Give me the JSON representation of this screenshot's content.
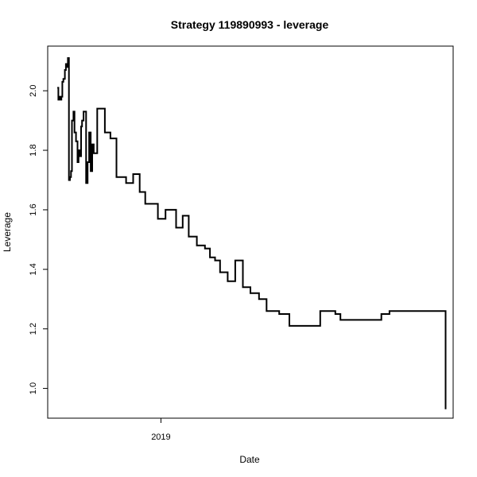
{
  "chart_data": {
    "type": "line",
    "title": "Strategy 119890993 - leverage",
    "xlabel": "Date",
    "ylabel": "Leverage",
    "x_ticks": [
      "2019"
    ],
    "y_ticks": [
      "1.0",
      "1.2",
      "1.4",
      "1.6",
      "1.8",
      "2.0"
    ],
    "ylim": [
      0.9,
      2.15
    ],
    "grid": false,
    "legend": "none",
    "line_color": "#000000",
    "series": [
      {
        "step": "horizontal-then-vertical",
        "x": [
          "2018-06-10",
          "2018-06-12",
          "2018-06-14",
          "2018-06-16",
          "2018-06-18",
          "2018-06-20",
          "2018-06-22",
          "2018-06-25",
          "2018-06-27",
          "2018-06-29",
          "2018-07-01",
          "2018-07-03",
          "2018-07-05",
          "2018-07-07",
          "2018-07-09",
          "2018-07-12",
          "2018-07-14",
          "2018-07-17",
          "2018-07-20",
          "2018-07-22",
          "2018-07-25",
          "2018-07-27",
          "2018-07-29",
          "2018-08-01",
          "2018-08-03",
          "2018-08-06",
          "2018-08-09",
          "2018-08-12",
          "2018-08-15",
          "2018-08-18",
          "2018-08-21",
          "2018-08-28",
          "2018-09-12",
          "2018-09-23",
          "2018-10-05",
          "2018-10-24",
          "2018-11-07",
          "2018-11-20",
          "2018-12-01",
          "2018-12-26",
          "2019-01-10",
          "2019-01-31",
          "2019-02-13",
          "2019-02-25",
          "2019-03-13",
          "2019-03-29",
          "2019-04-08",
          "2019-04-18",
          "2019-04-28",
          "2019-05-13",
          "2019-05-28",
          "2019-06-12",
          "2019-06-27",
          "2019-07-14",
          "2019-07-29",
          "2019-08-23",
          "2019-09-12",
          "2019-11-12",
          "2019-12-12",
          "2019-12-22",
          "2020-03-12",
          "2020-03-28",
          "2020-04-15",
          "2020-05-14",
          "2020-05-30",
          "2020-06-16",
          "2020-07-15",
          "2020-07-17"
        ],
        "y": [
          2.01,
          1.97,
          1.98,
          1.97,
          1.98,
          2.03,
          2.04,
          2.07,
          2.09,
          2.08,
          2.11,
          1.7,
          1.71,
          1.73,
          1.9,
          1.93,
          1.86,
          1.83,
          1.76,
          1.8,
          1.78,
          1.88,
          1.9,
          1.93,
          1.93,
          1.69,
          1.76,
          1.86,
          1.73,
          1.82,
          1.79,
          1.94,
          1.86,
          1.84,
          1.71,
          1.69,
          1.72,
          1.66,
          1.62,
          1.57,
          1.6,
          1.54,
          1.58,
          1.51,
          1.48,
          1.47,
          1.44,
          1.43,
          1.39,
          1.36,
          1.43,
          1.34,
          1.32,
          1.3,
          1.26,
          1.25,
          1.21,
          1.26,
          1.25,
          1.23,
          1.25,
          1.26,
          1.26,
          1.26,
          1.26,
          1.26,
          1.26,
          0.93
        ]
      }
    ]
  }
}
